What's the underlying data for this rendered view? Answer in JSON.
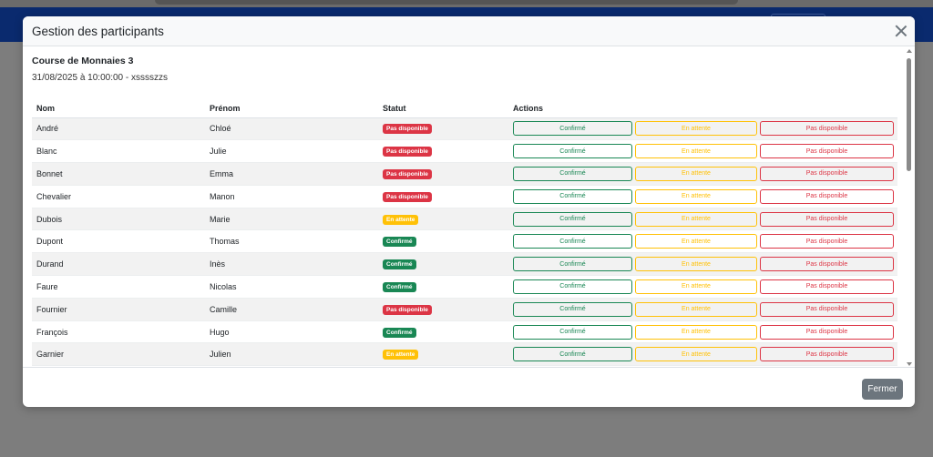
{
  "modal": {
    "title": "Gestion des participants",
    "event_name": "Course de Monnaies 3",
    "event_date": "31/08/2025 à 10:00:00 - xsssszzs",
    "close_button_label": "Fermer",
    "close_icon": "close-icon"
  },
  "table": {
    "headers": [
      "Nom",
      "Prénom",
      "Statut",
      "Actions"
    ],
    "action_labels": {
      "confirmed": "Confirmé",
      "pending": "En attente",
      "unavailable": "Pas disponible"
    },
    "rows": [
      {
        "nom": "André",
        "prenom": "Chloé",
        "statut": "Pas disponible",
        "statut_type": "danger"
      },
      {
        "nom": "Blanc",
        "prenom": "Julie",
        "statut": "Pas disponible",
        "statut_type": "danger"
      },
      {
        "nom": "Bonnet",
        "prenom": "Emma",
        "statut": "Pas disponible",
        "statut_type": "danger"
      },
      {
        "nom": "Chevalier",
        "prenom": "Manon",
        "statut": "Pas disponible",
        "statut_type": "danger"
      },
      {
        "nom": "Dubois",
        "prenom": "Marie",
        "statut": "En attente",
        "statut_type": "warning"
      },
      {
        "nom": "Dupont",
        "prenom": "Thomas",
        "statut": "Confirmé",
        "statut_type": "success"
      },
      {
        "nom": "Durand",
        "prenom": "Inès",
        "statut": "Confirmé",
        "statut_type": "success"
      },
      {
        "nom": "Faure",
        "prenom": "Nicolas",
        "statut": "Confirmé",
        "statut_type": "success"
      },
      {
        "nom": "Fournier",
        "prenom": "Camille",
        "statut": "Pas disponible",
        "statut_type": "danger"
      },
      {
        "nom": "François",
        "prenom": "Hugo",
        "statut": "Confirmé",
        "statut_type": "success"
      },
      {
        "nom": "Garnier",
        "prenom": "Julien",
        "statut": "En attente",
        "statut_type": "warning"
      }
    ]
  },
  "colors": {
    "success": "#198754",
    "warning": "#ffc107",
    "danger": "#dc3545",
    "secondary": "#6c757d",
    "navbar": "#0a2a6e"
  }
}
